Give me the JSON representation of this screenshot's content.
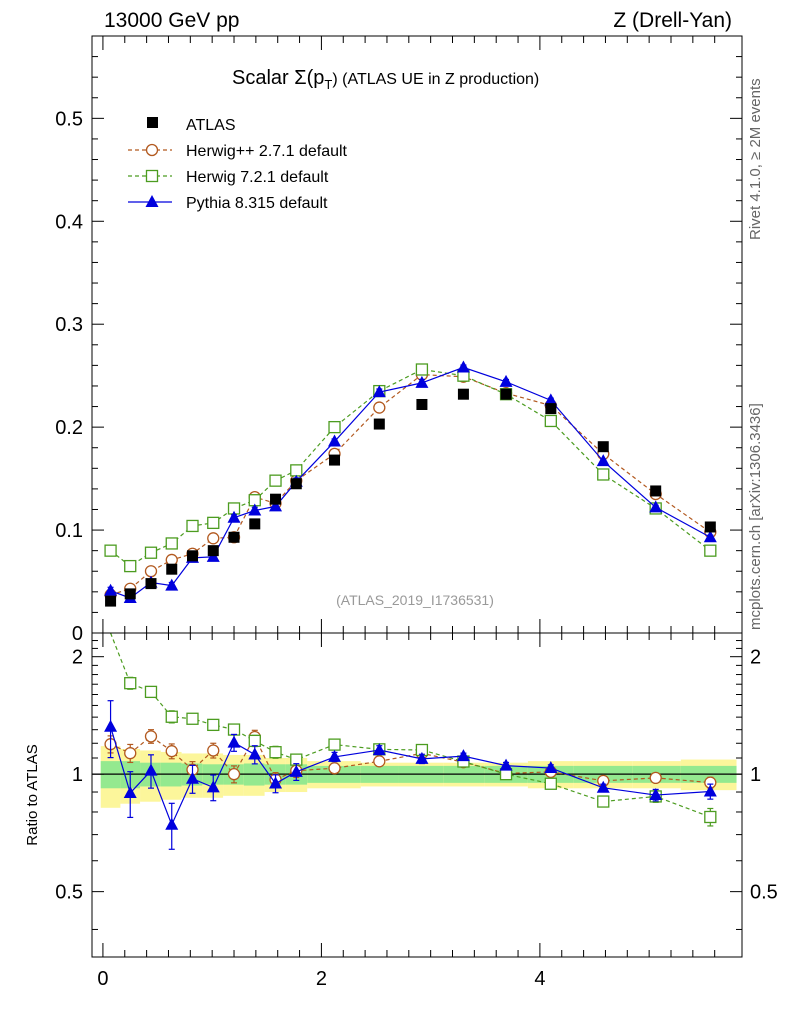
{
  "header": {
    "left": "13000 GeV pp",
    "right": "Z (Drell-Yan)"
  },
  "side_labels": {
    "rivet": "Rivet 4.1.0, ≥ 2M events",
    "mcplots": "mcplots.cern.ch [arXiv:1306.3436]"
  },
  "chart_data": {
    "type": "line",
    "title": "Scalar Σ(p",
    "title_sub": "T",
    "title_tail": ") (ATLAS UE in Z production)",
    "analysis_id": "(ATLAS_2019_I1736531)",
    "xlabel": "",
    "ylabel": "",
    "ratio_ylabel": "Ratio to ATLAS",
    "xlim": [
      -0.1,
      5.85
    ],
    "ylim": [
      0,
      0.58
    ],
    "ratio_ylim": [
      0.34,
      2.3
    ],
    "x_ticks": [
      0,
      2,
      4
    ],
    "y_ticks": [
      0.1,
      0.2,
      0.3,
      0.4,
      0.5
    ],
    "y_ticks_0_label": "0",
    "ratio_ticks": [
      0.5,
      1,
      2
    ],
    "x": [
      0.07,
      0.25,
      0.44,
      0.63,
      0.82,
      1.01,
      1.2,
      1.39,
      1.58,
      1.77,
      2.12,
      2.53,
      2.92,
      3.3,
      3.69,
      4.1,
      4.58,
      5.06,
      5.56
    ],
    "x_edges": [
      -0.02,
      0.16,
      0.34,
      0.53,
      0.72,
      0.91,
      1.1,
      1.29,
      1.48,
      1.67,
      1.87,
      2.36,
      2.71,
      3.12,
      3.49,
      3.89,
      4.31,
      4.85,
      5.29,
      5.8
    ],
    "data": {
      "name": "ATLAS",
      "values": [
        0.031,
        0.038,
        0.048,
        0.062,
        0.075,
        0.08,
        0.093,
        0.106,
        0.13,
        0.145,
        0.168,
        0.203,
        0.222,
        0.232,
        0.232,
        0.218,
        0.181,
        0.138,
        0.103
      ],
      "band_stat": [
        0.08,
        0.08,
        0.07,
        0.07,
        0.065,
        0.06,
        0.06,
        0.065,
        0.06,
        0.06,
        0.05,
        0.05,
        0.05,
        0.05,
        0.05,
        0.05,
        0.05,
        0.05,
        0.05
      ],
      "band_total": [
        0.18,
        0.16,
        0.15,
        0.14,
        0.13,
        0.13,
        0.12,
        0.12,
        0.1,
        0.1,
        0.08,
        0.07,
        0.07,
        0.07,
        0.07,
        0.08,
        0.08,
        0.08,
        0.09
      ]
    },
    "series": [
      {
        "name": "Herwig++ 2.7.1 default",
        "color": "#b2591f",
        "marker": "circle",
        "dashed": true,
        "values": [
          0.037,
          0.043,
          0.06,
          0.071,
          0.077,
          0.092,
          0.093,
          0.132,
          0.126,
          0.148,
          0.174,
          0.219,
          0.251,
          0.249,
          0.233,
          0.221,
          0.174,
          0.135,
          0.098
        ],
        "ratio_err": [
          0.06,
          0.06,
          0.05,
          0.05,
          0.05,
          0.05,
          0.05,
          0.05,
          0.04,
          0.04,
          0.03,
          0.03,
          0.02,
          0.02,
          0.02,
          0.02,
          0.02,
          0.02,
          0.03
        ]
      },
      {
        "name": "Herwig 7.2.1 default",
        "color": "#4c9c20",
        "marker": "square",
        "dashed": true,
        "values": [
          0.08,
          0.065,
          0.078,
          0.087,
          0.104,
          0.107,
          0.121,
          0.129,
          0.148,
          0.158,
          0.2,
          0.235,
          0.256,
          0.25,
          0.232,
          0.206,
          0.154,
          0.121,
          0.08
        ],
        "ratio_err": [
          0.08,
          0.06,
          0.05,
          0.05,
          0.04,
          0.04,
          0.04,
          0.04,
          0.04,
          0.03,
          0.03,
          0.02,
          0.02,
          0.02,
          0.02,
          0.02,
          0.02,
          0.03,
          0.04
        ]
      },
      {
        "name": "Pythia 8.315 default",
        "color": "#0000dd",
        "marker": "triangle",
        "dashed": false,
        "values": [
          0.041,
          0.034,
          0.049,
          0.046,
          0.073,
          0.074,
          0.112,
          0.119,
          0.123,
          0.147,
          0.186,
          0.234,
          0.243,
          0.258,
          0.244,
          0.226,
          0.167,
          0.122,
          0.093
        ],
        "ratio_err": [
          0.22,
          0.12,
          0.1,
          0.1,
          0.08,
          0.07,
          0.06,
          0.06,
          0.05,
          0.05,
          0.03,
          0.03,
          0.03,
          0.02,
          0.02,
          0.02,
          0.02,
          0.03,
          0.04
        ]
      }
    ]
  }
}
